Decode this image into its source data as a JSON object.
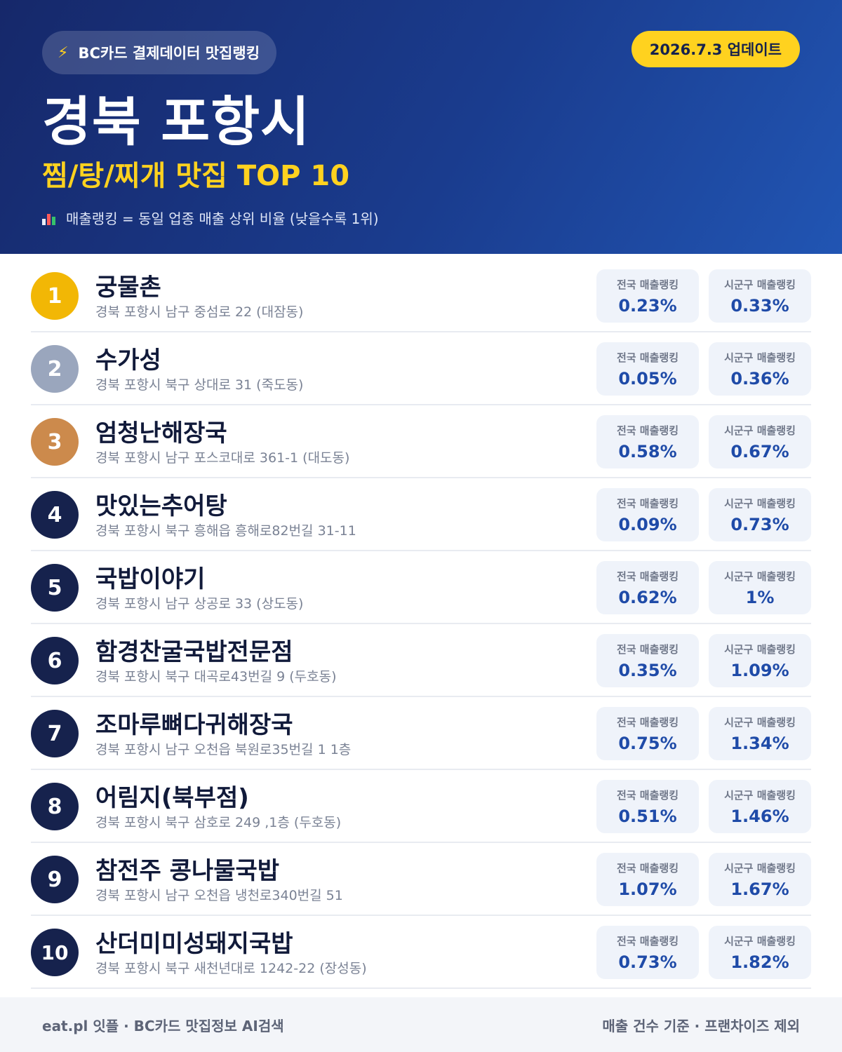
{
  "header": {
    "source_label": "BC카드 결제데이터 맛집랭킹",
    "source_icon": "lightning-icon",
    "update_label": "2026.7.3 업데이트",
    "title": "경북 포항시",
    "subtitle": "찜/탕/찌개 맛집 TOP 10",
    "legend_icon": "bar-chart-icon",
    "legend_text": "매출랭킹 = 동일 업종 매출 상위 비율 (낮을수록 1위)"
  },
  "stat_labels": {
    "national": "전국 매출랭킹",
    "local": "시군구 매출랭킹"
  },
  "colors": {
    "gold": "#f2b705",
    "silver": "#9aa6bd",
    "bronze": "#cc8a4c",
    "navy": "#16224d",
    "accent_yellow": "#ffd21f",
    "value_blue": "#1f4ba8"
  },
  "restaurants": [
    {
      "rank": "1",
      "name": "궁물촌",
      "address": "경북 포항시 남구 중섬로 22 (대잠동)",
      "national": "0.23%",
      "local": "0.33%",
      "badge": "gold"
    },
    {
      "rank": "2",
      "name": "수가성",
      "address": "경북 포항시 북구 상대로 31 (죽도동)",
      "national": "0.05%",
      "local": "0.36%",
      "badge": "silver"
    },
    {
      "rank": "3",
      "name": "엄청난해장국",
      "address": "경북 포항시 남구 포스코대로 361-1 (대도동)",
      "national": "0.58%",
      "local": "0.67%",
      "badge": "bronze"
    },
    {
      "rank": "4",
      "name": "맛있는추어탕",
      "address": "경북 포항시 북구 흥해읍 흥해로82번길 31-11",
      "national": "0.09%",
      "local": "0.73%",
      "badge": "navy"
    },
    {
      "rank": "5",
      "name": "국밥이야기",
      "address": "경북 포항시 남구 상공로 33 (상도동)",
      "national": "0.62%",
      "local": "1%",
      "badge": "navy"
    },
    {
      "rank": "6",
      "name": "함경찬굴국밥전문점",
      "address": "경북 포항시 북구 대곡로43번길 9 (두호동)",
      "national": "0.35%",
      "local": "1.09%",
      "badge": "navy"
    },
    {
      "rank": "7",
      "name": "조마루뼈다귀해장국",
      "address": "경북 포항시 남구 오천읍 북원로35번길 1 1층",
      "national": "0.75%",
      "local": "1.34%",
      "badge": "navy"
    },
    {
      "rank": "8",
      "name": "어림지(북부점)",
      "address": "경북 포항시 북구 삼호로 249 ,1층 (두호동)",
      "national": "0.51%",
      "local": "1.46%",
      "badge": "navy"
    },
    {
      "rank": "9",
      "name": "참전주 콩나물국밥",
      "address": "경북 포항시 남구 오천읍 냉천로340번길 51",
      "national": "1.07%",
      "local": "1.67%",
      "badge": "navy"
    },
    {
      "rank": "10",
      "name": "산더미미성돼지국밥",
      "address": "경북 포항시 북구 새천년대로 1242-22 (장성동)",
      "national": "0.73%",
      "local": "1.82%",
      "badge": "navy"
    }
  ],
  "footer": {
    "left": "eat.pl 잇플 · BC카드 맛집정보 AI검색",
    "right": "매출 건수 기준 · 프랜차이즈 제외"
  }
}
